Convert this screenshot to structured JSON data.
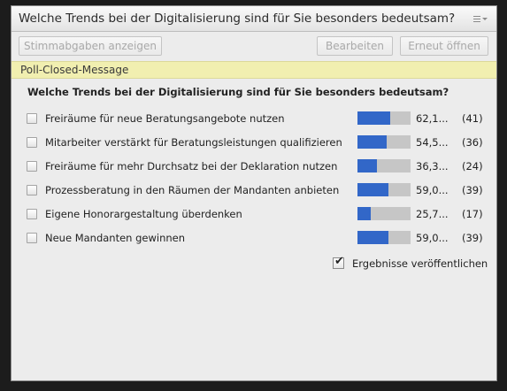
{
  "pod": {
    "title": "Welche Trends bei der Digitalisierung sind für Sie besonders bedeutsam?",
    "menu_icon": "menu-lines-icon"
  },
  "toolbar": {
    "show_votes_label": "Stimmabgaben anzeigen",
    "edit_label": "Bearbeiten",
    "reopen_label": "Erneut öffnen"
  },
  "status": {
    "message": "Poll-Closed-Message",
    "bar_color": "#f1efb0"
  },
  "question": "Welche Trends bei der Digitalisierung sind für Sie besonders bedeutsam?",
  "bar_color": "#3267c8",
  "answers": [
    {
      "label": "Freiräume für neue Beratungsangebote nutzen",
      "percent_text": "62,1...",
      "count": "(41)",
      "percent": 62.1
    },
    {
      "label": "Mitarbeiter verstärkt für Beratungsleistungen qualifizieren",
      "percent_text": "54,5...",
      "count": "(36)",
      "percent": 54.5
    },
    {
      "label": "Freiräume für mehr Durchsatz bei der Deklaration nutzen",
      "percent_text": "36,3...",
      "count": "(24)",
      "percent": 36.3
    },
    {
      "label": "Prozessberatung in den Räumen der Mandanten anbieten",
      "percent_text": "59,0...",
      "count": "(39)",
      "percent": 59.0
    },
    {
      "label": "Eigene Honorargestaltung überdenken",
      "percent_text": "25,7...",
      "count": "(17)",
      "percent": 25.7
    },
    {
      "label": "Neue Mandanten gewinnen",
      "percent_text": "59,0...",
      "count": "(39)",
      "percent": 59.0
    }
  ],
  "publish": {
    "label": "Ergebnisse veröffentlichen",
    "checked": true
  }
}
